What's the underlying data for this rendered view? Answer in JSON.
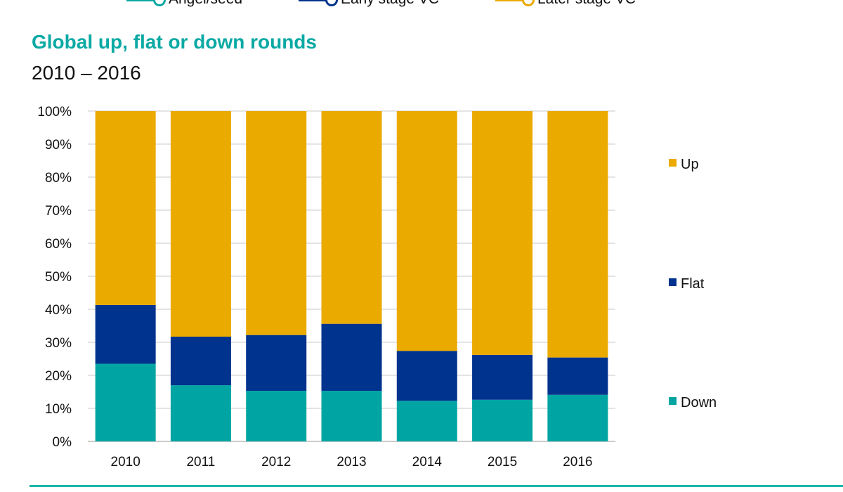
{
  "top_legend": [
    {
      "label": "Angel/seed",
      "color": "#0AA9A4",
      "icon": "line-marker-icon"
    },
    {
      "label": "Early stage VC",
      "color": "#00338D",
      "icon": "line-marker-icon"
    },
    {
      "label": "Later stage VC",
      "color": "#EAAA00",
      "icon": "line-marker-icon"
    }
  ],
  "chart_data": {
    "type": "bar",
    "stacked": true,
    "title": "Global up, flat or down rounds",
    "subtitle": "2010 – 2016",
    "categories": [
      "2010",
      "2011",
      "2012",
      "2013",
      "2014",
      "2015",
      "2016"
    ],
    "series": [
      {
        "name": "Down",
        "color": "#00A5A3",
        "values": [
          23.5,
          17,
          15.3,
          15.3,
          12.3,
          12.6,
          14.1
        ]
      },
      {
        "name": "Flat",
        "color": "#00338D",
        "values": [
          17.8,
          14.7,
          16.9,
          20.3,
          15.1,
          13.6,
          11.3
        ]
      },
      {
        "name": "Up",
        "color": "#EAAA00",
        "values": [
          58.7,
          68.3,
          67.8,
          64.4,
          72.6,
          73.8,
          74.6
        ]
      }
    ],
    "y_ticks": [
      "0%",
      "10%",
      "20%",
      "30%",
      "40%",
      "50%",
      "60%",
      "70%",
      "80%",
      "90%",
      "100%"
    ],
    "ylim": [
      0,
      100
    ],
    "grid": true,
    "legend_position": "right",
    "xlabel": "",
    "ylabel": ""
  }
}
